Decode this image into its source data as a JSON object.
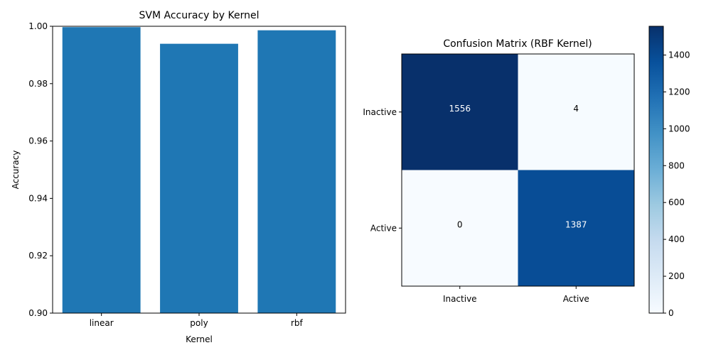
{
  "chart_data": [
    {
      "type": "bar",
      "title": "SVM Accuracy by Kernel",
      "xlabel": "Kernel",
      "ylabel": "Accuracy",
      "categories": [
        "linear",
        "poly",
        "rbf"
      ],
      "values": [
        0.9997,
        0.9939,
        0.9986
      ],
      "ylim": [
        0.9,
        1.0
      ],
      "yticks": [
        0.9,
        0.92,
        0.94,
        0.96,
        0.98,
        1.0
      ],
      "ytick_labels": [
        "0.90",
        "0.92",
        "0.94",
        "0.96",
        "0.98",
        "1.00"
      ],
      "bar_color": "#1f77b4",
      "grid": false
    },
    {
      "type": "heatmap",
      "title": "Confusion Matrix (RBF Kernel)",
      "row_labels": [
        "Inactive",
        "Active"
      ],
      "col_labels": [
        "Inactive",
        "Active"
      ],
      "values": [
        [
          1556,
          4
        ],
        [
          0,
          1387
        ]
      ],
      "colormap": "Blues",
      "colorbar": {
        "range": [
          0,
          1556
        ],
        "ticks": [
          0,
          200,
          400,
          600,
          800,
          1000,
          1200,
          1400
        ],
        "tick_labels": [
          "0",
          "200",
          "400",
          "600",
          "800",
          "1000",
          "1200",
          "1400"
        ]
      }
    }
  ]
}
